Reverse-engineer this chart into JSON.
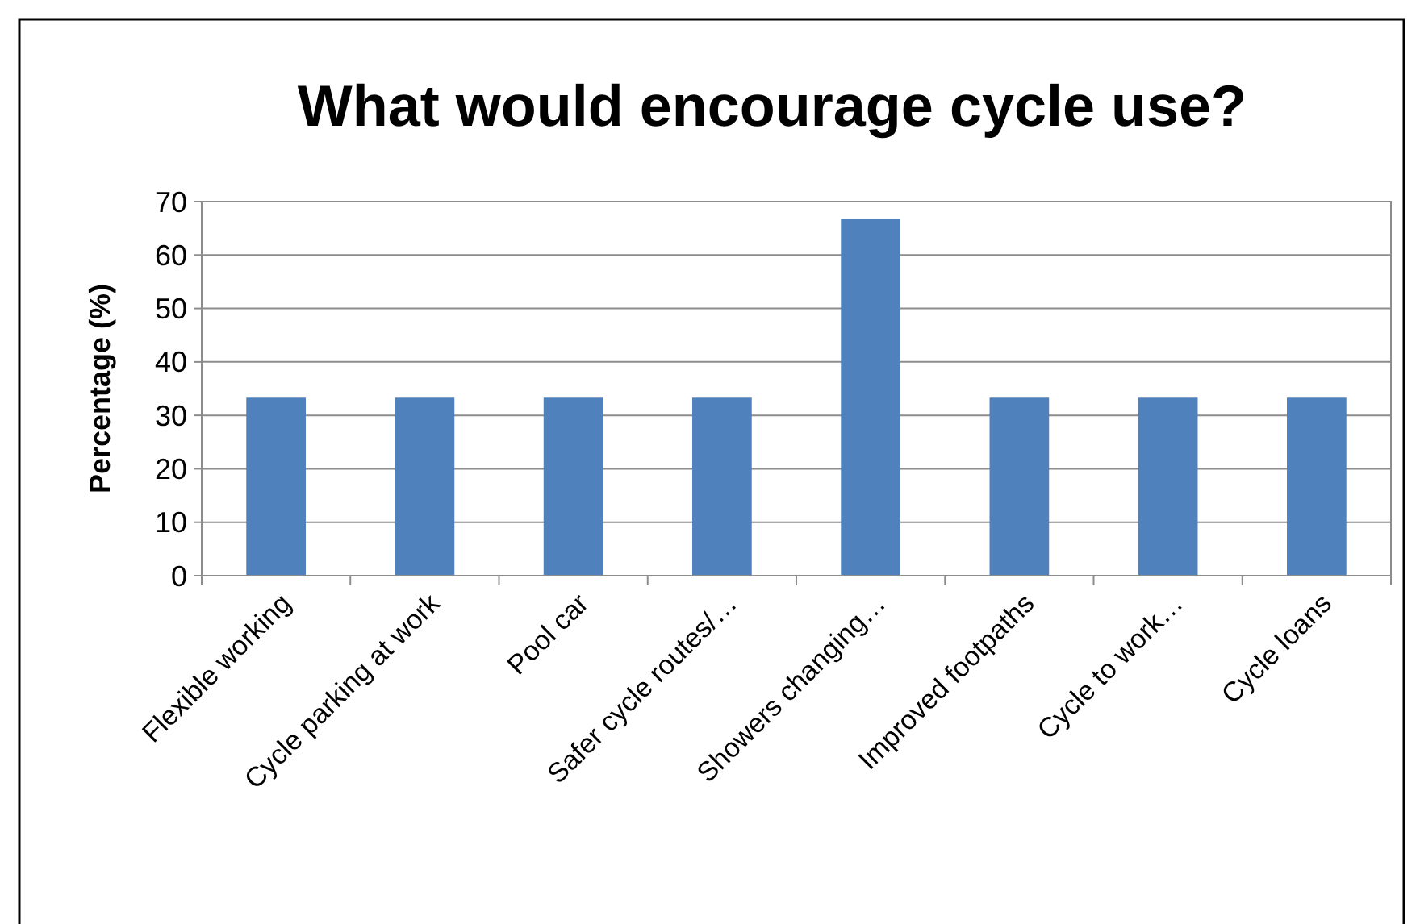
{
  "chart_data": {
    "type": "bar",
    "title": "What would encourage cycle use?",
    "ylabel": "Percentage (%)",
    "categories": [
      "Flexible working",
      "Cycle parking at work",
      "Pool car",
      "Safer cycle routes/…",
      "Showers changing…",
      "Improved footpaths",
      "Cycle to work…",
      "Cycle loans"
    ],
    "values": [
      33.3,
      33.3,
      33.3,
      33.3,
      66.7,
      33.3,
      33.3,
      33.3
    ],
    "color": "#4f81bd",
    "ylim": [
      0,
      70
    ],
    "yticks": [
      0,
      10,
      20,
      30,
      40,
      50,
      60,
      70
    ],
    "grid": "y"
  }
}
